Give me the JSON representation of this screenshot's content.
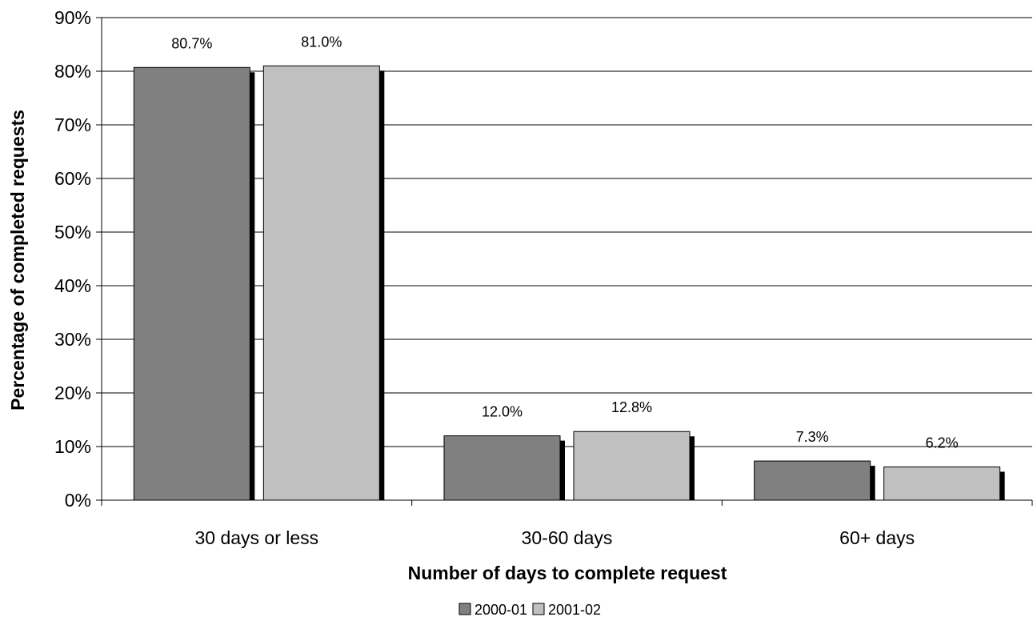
{
  "chart_data": {
    "type": "bar",
    "title": "",
    "xlabel": "Number of days to complete request",
    "ylabel": "Percentage of completed requests",
    "categories": [
      "30 days or less",
      "30-60 days",
      "60+ days"
    ],
    "series": [
      {
        "name": "2000-01",
        "color": "#808080",
        "values": [
          80.7,
          12.0,
          7.3
        ],
        "labels": [
          "80.7%",
          "12.0%",
          "7.3%"
        ]
      },
      {
        "name": "2001-02",
        "color": "#c0c0c0",
        "values": [
          81.0,
          12.8,
          6.2
        ],
        "labels": [
          "81.0%",
          "12.8%",
          "6.2%"
        ]
      }
    ],
    "ylim": [
      0,
      90
    ],
    "yticks": [
      0,
      10,
      20,
      30,
      40,
      50,
      60,
      70,
      80,
      90
    ],
    "ytick_labels": [
      "0%",
      "10%",
      "20%",
      "30%",
      "40%",
      "50%",
      "60%",
      "70%",
      "80%",
      "90%"
    ],
    "grid": true,
    "legend_position": "bottom-center",
    "shadow_color": "#000000"
  }
}
